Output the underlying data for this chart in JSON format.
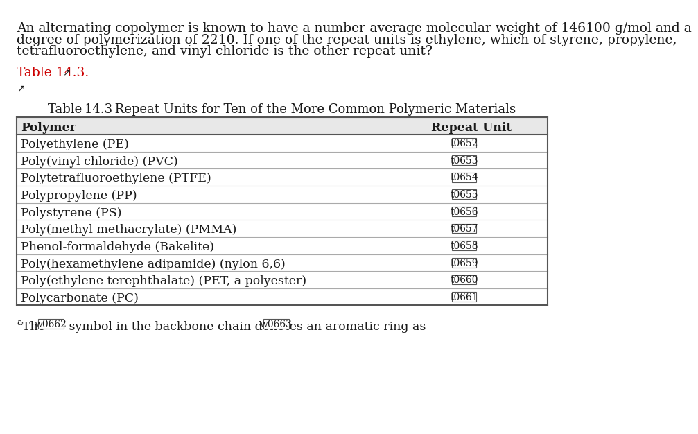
{
  "bg_color": "#ffffff",
  "question_text": [
    "An alternating copolymer is known to have a number-average molecular weight of 146100 g/mol and a",
    "degree of polymerization of 2210. If one of the repeat units is ethylene, which of styrene, propylene,",
    "tetrafluoroethylene, and vinyl chloride is the other repeat unit?"
  ],
  "link_text": "Table 14.3.",
  "link_color": "#cc0000",
  "external_link_symbol": "↗",
  "table_title": "Table 14.3 Repeat Units for Ten of the More Common Polymeric Materials",
  "header": [
    "Polymer",
    "Repeat Unit"
  ],
  "header_bg": "#e8e8e8",
  "rows": [
    [
      "Polyethylene (PE)",
      "t0652"
    ],
    [
      "Poly(vinyl chloride) (PVC)",
      "t0653"
    ],
    [
      "Polytetrafluoroethylene (PTFE)",
      "t0654"
    ],
    [
      "Polypropylene (PP)",
      "t0655"
    ],
    [
      "Polystyrene (PS)",
      "t0656"
    ],
    [
      "Poly(methyl methacrylate) (PMMA)",
      "t0657"
    ],
    [
      "Phenol-formaldehyde (Bakelite)",
      "t0658"
    ],
    [
      "Poly(hexamethylene adipamide) (nylon 6,6)",
      "t0659"
    ],
    [
      "Poly(ethylene terephthalate) (PET, a polyester)",
      "t0660"
    ],
    [
      "Polycarbonate (PC)",
      "t0661"
    ]
  ],
  "text_color": "#1a1a1a",
  "line_color": "#aaaaaa",
  "table_border_color": "#555555",
  "font_size_question": 13.5,
  "font_size_table": 12.5,
  "font_size_title": 13.0
}
